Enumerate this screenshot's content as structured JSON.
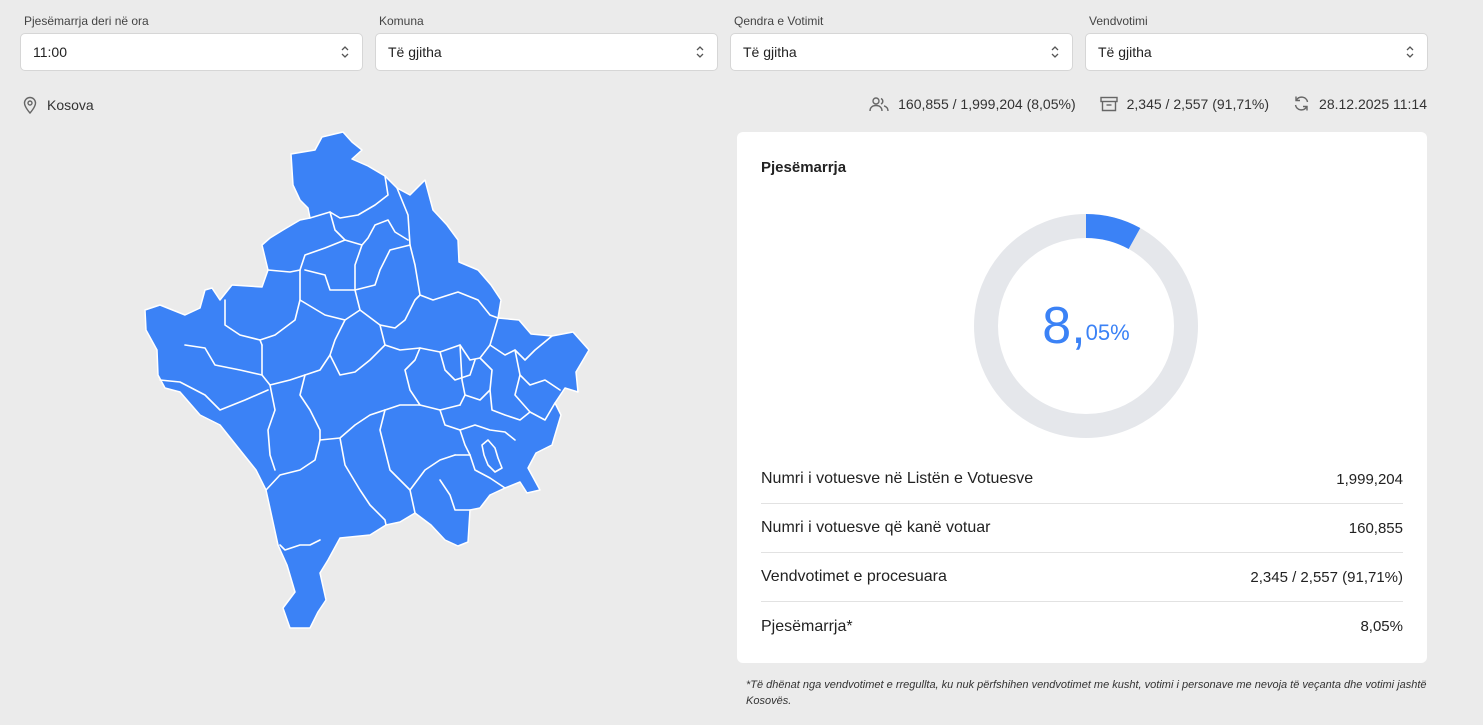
{
  "filters": [
    {
      "label": "Pjesëmarrja deri në ora",
      "value": "11:00"
    },
    {
      "label": "Komuna",
      "value": "Të gjitha"
    },
    {
      "label": "Qendra e Votimit",
      "value": "Të gjitha"
    },
    {
      "label": "Vendvotimi",
      "value": "Të gjitha"
    }
  ],
  "location": "Kosova",
  "stats": {
    "voters": "160,855 / 1,999,204 (8,05%)",
    "stations": "2,345 / 2,557 (91,71%)",
    "updated": "28.12.2025 11:14"
  },
  "card": {
    "title": "Pjesëmarrja",
    "percent_int": "8,",
    "percent_dec": "05%",
    "turnout_fraction": 0.0805,
    "rows": [
      {
        "label": "Numri i votuesve në Listën e Votuesve",
        "value": "1,999,204"
      },
      {
        "label": "Numri i votuesve që kanë votuar",
        "value": "160,855"
      },
      {
        "label": "Vendvotimet e procesuara",
        "value": "2,345 / 2,557 (91,71%)"
      },
      {
        "label": "Pjesëmarrja*",
        "value": "8,05%"
      }
    ]
  },
  "footnote": "*Të dhënat nga vendvotimet e rregullta, ku nuk përfshihen vendvotimet me kusht, votimi i personave me nevoja të veçanta dhe votimi jashtë Kosovës.",
  "colors": {
    "accent": "#3b82f6",
    "track": "#e5e7eb",
    "map_fill": "#3b82f6"
  },
  "icons": {
    "location": "map-pin-icon",
    "voters": "users-icon",
    "stations": "ballot-box-icon",
    "updated": "refresh-icon",
    "select": "chevron-up-down-icon"
  }
}
